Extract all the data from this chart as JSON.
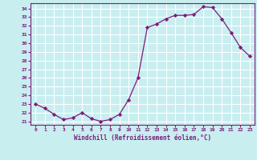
{
  "x": [
    0,
    1,
    2,
    3,
    4,
    5,
    6,
    7,
    8,
    9,
    10,
    11,
    12,
    13,
    14,
    15,
    16,
    17,
    18,
    19,
    20,
    21,
    22,
    23
  ],
  "y": [
    23.0,
    22.5,
    21.8,
    21.2,
    21.4,
    22.0,
    21.3,
    21.0,
    21.2,
    21.8,
    23.5,
    26.0,
    31.8,
    32.2,
    32.8,
    33.2,
    33.2,
    33.3,
    34.2,
    34.1,
    32.8,
    31.2,
    29.5,
    28.5
  ],
  "line_color": "#7b1d7b",
  "marker": "D",
  "marker_size": 2.2,
  "bg_color": "#c8eef0",
  "grid_color": "#ffffff",
  "xlabel": "Windchill (Refroidissement éolien,°C)",
  "ylabel_ticks": [
    21,
    22,
    23,
    24,
    25,
    26,
    27,
    28,
    29,
    30,
    31,
    32,
    33,
    34
  ],
  "xlim": [
    -0.5,
    23.5
  ],
  "ylim": [
    20.6,
    34.6
  ],
  "xticks": [
    0,
    1,
    2,
    3,
    4,
    5,
    6,
    7,
    8,
    9,
    10,
    11,
    12,
    13,
    14,
    15,
    16,
    17,
    18,
    19,
    20,
    21,
    22,
    23
  ],
  "tick_color": "#7b1d7b",
  "label_color": "#7b1d7b",
  "spine_color": "#7b1d7b"
}
